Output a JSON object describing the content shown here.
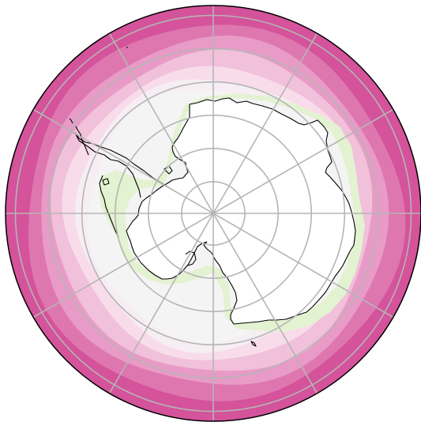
{
  "map": {
    "projection": "south-polar-stereographic",
    "colors": {
      "outer_band": "#d4539b",
      "band_2": "#de77b0",
      "band_3": "#e89bc6",
      "band_4": "#f1c0da",
      "band_5": "#f8dcea",
      "inner_pale": "#f6eef2",
      "near_neutral": "#f4f4f4",
      "green_band": "#e3f2d0",
      "green_light": "#eef7e2",
      "land": "#ffffff",
      "coastline": "#000000",
      "gridline": "#b5b5b5",
      "boundary": "#000000"
    },
    "gridlines": {
      "latitude_circles": 6,
      "meridians": 6
    },
    "has_title": false,
    "has_colorbar": false
  }
}
